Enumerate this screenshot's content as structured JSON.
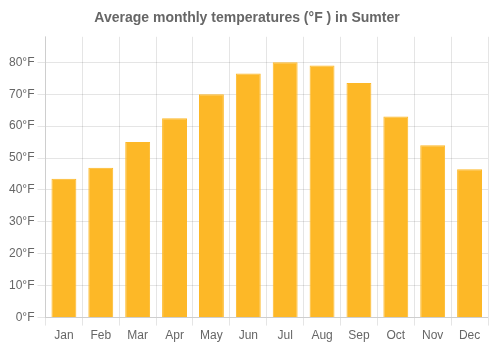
{
  "chart_data": {
    "type": "bar",
    "title": "Average monthly temperatures (°F ) in Sumter",
    "categories": [
      "Jan",
      "Feb",
      "Mar",
      "Apr",
      "May",
      "Jun",
      "Jul",
      "Aug",
      "Sep",
      "Oct",
      "Nov",
      "Dec"
    ],
    "values": [
      43.5,
      47,
      55,
      62.5,
      70,
      76.5,
      80,
      79,
      73.5,
      63,
      54,
      46.5
    ],
    "color": "#FDB827",
    "ylim": [
      0,
      88
    ],
    "yticks": [
      {
        "value": 0,
        "label": "0°F"
      },
      {
        "value": 10,
        "label": "10°F"
      },
      {
        "value": 20,
        "label": "20°F"
      },
      {
        "value": 30,
        "label": "30°F"
      },
      {
        "value": 40,
        "label": "40°F"
      },
      {
        "value": 50,
        "label": "50°F"
      },
      {
        "value": 60,
        "label": "60°F"
      },
      {
        "value": 70,
        "label": "70°F"
      },
      {
        "value": 80,
        "label": "80°F"
      }
    ],
    "grid": true
  }
}
